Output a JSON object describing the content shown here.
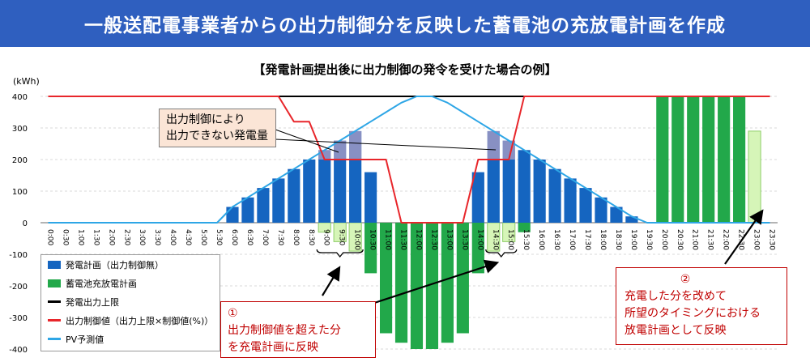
{
  "header": {
    "title": "一般送配電事業者からの出力制御分を反映した蓄電池の充放電計画を作成"
  },
  "subtitle": "【発電計画提出後に出力制御の発令を受けた場合の例】",
  "colors": {
    "gen": "#1565c0",
    "battery": "#22a84a",
    "limit": "#000000",
    "control": "#e8262b",
    "pv": "#2ea6e6",
    "header": "#2f5fbf",
    "highlight_fill": "#e8b4c4",
    "light_green": "#d6f5b8"
  },
  "chart_data": {
    "type": "bar",
    "ylabel": "(kWh)",
    "ylim": [
      -400,
      400
    ],
    "y_ticks": [
      400,
      300,
      200,
      100,
      0,
      -100,
      -200,
      -300,
      -400
    ],
    "categories": [
      "0:00",
      "0:30",
      "1:00",
      "1:30",
      "2:00",
      "2:30",
      "3:00",
      "3:30",
      "4:00",
      "4:30",
      "5:00",
      "5:30",
      "6:00",
      "6:30",
      "7:00",
      "7:30",
      "8:00",
      "8:30",
      "9:00",
      "9:30",
      "10:00",
      "10:30",
      "11:00",
      "11:30",
      "12:00",
      "12:30",
      "13:00",
      "13:30",
      "14:00",
      "14:30",
      "15:00",
      "15:30",
      "16:00",
      "16:30",
      "17:00",
      "17:30",
      "18:00",
      "18:30",
      "19:00",
      "19:30",
      "20:00",
      "20:30",
      "21:00",
      "21:30",
      "22:00",
      "22:30",
      "23:00",
      "23:30"
    ],
    "series": [
      {
        "name": "発電計画（出力制御無）",
        "type": "bar",
        "values": [
          0,
          0,
          0,
          0,
          0,
          0,
          0,
          0,
          0,
          0,
          0,
          0,
          50,
          80,
          110,
          140,
          170,
          200,
          230,
          260,
          290,
          160,
          0,
          0,
          0,
          0,
          0,
          0,
          160,
          290,
          260,
          230,
          200,
          170,
          140,
          110,
          80,
          50,
          20,
          0,
          0,
          0,
          0,
          0,
          0,
          0,
          0,
          0
        ]
      },
      {
        "name": "蓄電池充放電計画",
        "type": "bar",
        "values": [
          0,
          0,
          0,
          0,
          0,
          0,
          0,
          0,
          0,
          0,
          0,
          0,
          0,
          0,
          0,
          0,
          0,
          0,
          -30,
          -60,
          -90,
          -160,
          -350,
          -380,
          -400,
          -400,
          -380,
          -350,
          -160,
          -90,
          -60,
          -30,
          0,
          0,
          0,
          0,
          0,
          0,
          0,
          0,
          400,
          400,
          400,
          400,
          400,
          400,
          290,
          0
        ]
      },
      {
        "name": "発電出力上限",
        "type": "line",
        "values": [
          400,
          400,
          400,
          400,
          400,
          400,
          400,
          400,
          400,
          400,
          400,
          400,
          400,
          400,
          400,
          400,
          400,
          400,
          400,
          400,
          400,
          400,
          400,
          400,
          400,
          400,
          400,
          400,
          400,
          400,
          400,
          400,
          400,
          400,
          400,
          400,
          400,
          400,
          400,
          400,
          400,
          400,
          400,
          400,
          400,
          400,
          400,
          400
        ]
      },
      {
        "name": "出力制御値（出力上限×制御値(%)）",
        "type": "line",
        "values": [
          400,
          400,
          400,
          400,
          400,
          400,
          400,
          400,
          400,
          400,
          400,
          400,
          400,
          400,
          400,
          400,
          320,
          320,
          200,
          200,
          200,
          200,
          200,
          0,
          0,
          0,
          0,
          0,
          200,
          200,
          200,
          400,
          400,
          400,
          400,
          400,
          400,
          400,
          400,
          400,
          400,
          400,
          400,
          400,
          400,
          400,
          400,
          400
        ]
      },
      {
        "name": "PV予測値",
        "type": "line",
        "values": [
          0,
          0,
          0,
          0,
          0,
          0,
          0,
          0,
          0,
          0,
          0,
          0,
          50,
          80,
          110,
          140,
          170,
          200,
          230,
          260,
          290,
          320,
          350,
          380,
          400,
          400,
          380,
          350,
          320,
          290,
          260,
          230,
          200,
          170,
          140,
          110,
          80,
          50,
          20,
          0,
          0,
          0,
          0,
          0,
          0,
          0,
          0,
          0
        ]
      }
    ]
  },
  "legend": {
    "items": [
      {
        "label": "発電計画（出力制御無）"
      },
      {
        "label": "蓄電池充放電計画"
      },
      {
        "label": "発電出力上限"
      },
      {
        "label": "出力制御値（出力上限×制御値(%)）"
      },
      {
        "label": "PV予測値"
      }
    ]
  },
  "annotations": {
    "callout1": {
      "line1": "出力制御により",
      "line2": "出力できない発電量"
    },
    "callout2": {
      "number": "①",
      "line1": "出力制御値を超えた分",
      "line2": "を充電計画に反映"
    },
    "callout3": {
      "number": "②",
      "line1": "充電した分を改めて",
      "line2": "所望のタイミングにおける",
      "line3": "放電計画として反映"
    }
  }
}
